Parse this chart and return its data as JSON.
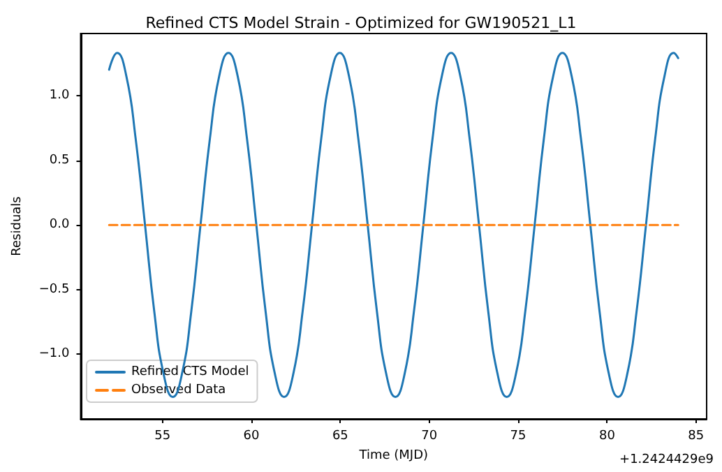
{
  "chart_data": {
    "type": "line",
    "title": "Refined CTS Model Strain - Optimized for GW190521_L1",
    "xlabel": "Time (MJD)",
    "ylabel": "Residuals",
    "annotations": [
      "+1.2424429e9"
    ],
    "xlim": [
      50.4,
      85.6
    ],
    "xticks": [
      55,
      60,
      65,
      70,
      75,
      80,
      85
    ],
    "ylim": [
      -1.5,
      1.48
    ],
    "yticks": [
      {
        "value": -1,
        "label": "−1.0"
      },
      {
        "value": -0.5,
        "label": "−0.5"
      },
      {
        "value": 0,
        "label": "0.0"
      },
      {
        "value": 0.5,
        "label": "0.5"
      },
      {
        "value": 1,
        "label": "1.0"
      }
    ],
    "grid": false,
    "legend": "bottom left",
    "marker": "none",
    "series": [
      {
        "name": "Refined CTS Model",
        "color": "#1f77b4",
        "line_style": "solid",
        "x": [
          52.0,
          52.45,
          52.97,
          53.49,
          54.02,
          54.54,
          55.06,
          55.58,
          56.1,
          56.62,
          57.14,
          57.67,
          58.19,
          58.71,
          59.23,
          59.75,
          60.28,
          60.8,
          61.32,
          61.84,
          62.36,
          62.88,
          63.41,
          63.93,
          64.45,
          64.97,
          65.49,
          66.01,
          66.54,
          67.06,
          67.58,
          68.1,
          68.62,
          69.14,
          69.67,
          70.19,
          70.71,
          71.23,
          71.75,
          72.27,
          72.8,
          73.32,
          73.84,
          74.36,
          74.88,
          75.4,
          75.93,
          76.45,
          76.97,
          77.49,
          78.01,
          78.53,
          79.06,
          79.58,
          80.1,
          80.62,
          81.14,
          81.66,
          82.19,
          82.71,
          83.23,
          83.75,
          84.0
        ],
        "values": [
          1.2,
          1.33,
          1.15,
          0.67,
          0,
          -0.67,
          -1.15,
          -1.33,
          -1.15,
          -0.67,
          0,
          0.67,
          1.15,
          1.33,
          1.15,
          0.67,
          0,
          -0.67,
          -1.15,
          -1.33,
          -1.15,
          -0.67,
          0,
          0.67,
          1.15,
          1.33,
          1.15,
          0.67,
          0,
          -0.67,
          -1.15,
          -1.33,
          -1.15,
          -0.67,
          0,
          0.67,
          1.15,
          1.33,
          1.15,
          0.67,
          0,
          -0.67,
          -1.15,
          -1.33,
          -1.15,
          -0.67,
          0,
          0.67,
          1.15,
          1.33,
          1.15,
          0.67,
          0,
          -0.67,
          -1.15,
          -1.33,
          -1.15,
          -0.67,
          0,
          0.67,
          1.15,
          1.33,
          1.29
        ]
      },
      {
        "name": "Observed Data",
        "color": "#ff7f0e",
        "line_style": "dashed",
        "x": [
          52,
          84
        ],
        "values": [
          0,
          0
        ]
      }
    ]
  }
}
